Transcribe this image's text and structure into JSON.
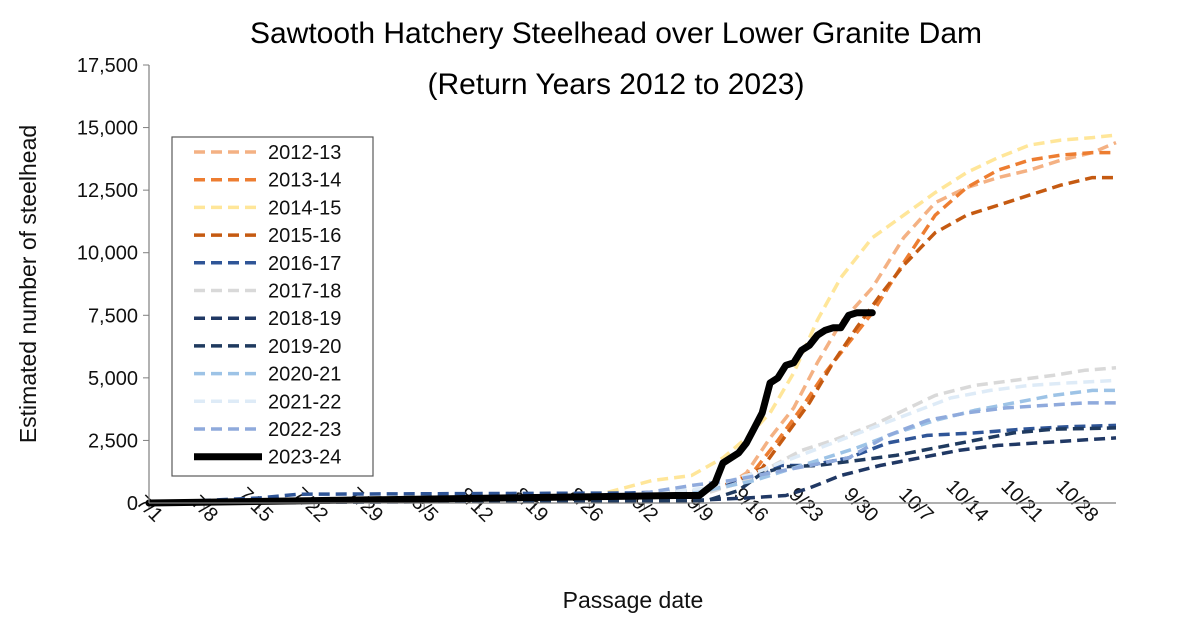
{
  "chart_data": {
    "type": "line",
    "title": "Sawtooth Hatchery Steelhead over Lower Granite Dam",
    "subtitle": "(Return Years 2012 to 2023)",
    "xlabel": "Passage date",
    "ylabel": "Estimated number of steelhead",
    "x_ticks": [
      "7/1",
      "7/8",
      "7/15",
      "7/22",
      "7/29",
      "8/5",
      "8/12",
      "8/19",
      "8/26",
      "9/2",
      "9/9",
      "9/16",
      "9/23",
      "9/30",
      "10/7",
      "10/14",
      "10/21",
      "10/28"
    ],
    "x_start_date": "7/1",
    "x_end_date": "11/1",
    "y_ticks": [
      "0",
      "2,500",
      "5,000",
      "7,500",
      "10,000",
      "12,500",
      "15,000",
      "17,500"
    ],
    "ylim": [
      0,
      17500
    ],
    "grid": false,
    "legend_position": "left",
    "series": [
      {
        "name": "2012-13",
        "color": "#f4b183",
        "dash": true,
        "x": [
          "7/1",
          "8/31",
          "9/7",
          "9/12",
          "9/15",
          "9/18",
          "9/21",
          "9/24",
          "9/27",
          "10/1",
          "10/5",
          "10/9",
          "10/13",
          "10/17",
          "10/21",
          "10/25",
          "10/29",
          "11/1"
        ],
        "values": [
          0,
          350,
          400,
          600,
          1200,
          2600,
          3800,
          5600,
          7200,
          8600,
          10600,
          12000,
          12600,
          13000,
          13300,
          13700,
          14000,
          14400
        ]
      },
      {
        "name": "2013-14",
        "color": "#ed7d31",
        "dash": true,
        "x": [
          "7/1",
          "8/31",
          "9/9",
          "9/13",
          "9/16",
          "9/19",
          "9/22",
          "9/25",
          "9/28",
          "10/1",
          "10/5",
          "10/9",
          "10/13",
          "10/17",
          "10/21",
          "10/25",
          "10/29",
          "11/1"
        ],
        "values": [
          0,
          300,
          400,
          700,
          1300,
          2500,
          3800,
          5200,
          6400,
          7600,
          9600,
          11500,
          12600,
          13300,
          13700,
          13900,
          14000,
          14000
        ]
      },
      {
        "name": "2014-15",
        "color": "#ffe699",
        "dash": true,
        "x": [
          "7/1",
          "8/28",
          "9/3",
          "9/8",
          "9/12",
          "9/15",
          "9/18",
          "9/21",
          "9/24",
          "9/27",
          "10/1",
          "10/5",
          "10/9",
          "10/13",
          "10/17",
          "10/21",
          "10/25",
          "10/29",
          "11/1"
        ],
        "values": [
          0,
          400,
          900,
          1100,
          1800,
          2600,
          3600,
          5200,
          7300,
          9000,
          10600,
          11500,
          12400,
          13200,
          13800,
          14300,
          14500,
          14600,
          14700
        ]
      },
      {
        "name": "2015-16",
        "color": "#c55a11",
        "dash": true,
        "x": [
          "7/1",
          "8/31",
          "9/9",
          "9/14",
          "9/17",
          "9/20",
          "9/23",
          "9/26",
          "9/29",
          "10/2",
          "10/5",
          "10/9",
          "10/13",
          "10/17",
          "10/21",
          "10/25",
          "10/29",
          "11/1"
        ],
        "values": [
          0,
          300,
          400,
          900,
          1400,
          2700,
          4000,
          5600,
          7000,
          8300,
          9500,
          10800,
          11500,
          11900,
          12300,
          12700,
          13000,
          13000
        ]
      },
      {
        "name": "2016-17",
        "color": "#2f5597",
        "dash": true,
        "x": [
          "7/1",
          "7/15",
          "7/20",
          "8/31",
          "9/10",
          "9/16",
          "9/19",
          "9/23",
          "9/28",
          "10/3",
          "10/8",
          "10/14",
          "10/20",
          "10/26",
          "11/1"
        ],
        "values": [
          0,
          200,
          350,
          400,
          500,
          1000,
          1500,
          1500,
          1800,
          2400,
          2700,
          2800,
          2950,
          3050,
          3100
        ]
      },
      {
        "name": "2017-18",
        "color": "#d9d9d9",
        "dash": true,
        "x": [
          "7/1",
          "8/31",
          "9/10",
          "9/15",
          "9/19",
          "9/22",
          "9/26",
          "10/1",
          "10/5",
          "10/9",
          "10/14",
          "10/19",
          "10/24",
          "10/28",
          "11/1"
        ],
        "values": [
          0,
          250,
          400,
          900,
          1600,
          2100,
          2500,
          3100,
          3700,
          4300,
          4700,
          4900,
          5100,
          5300,
          5400
        ]
      },
      {
        "name": "2018-19",
        "color": "#203864",
        "dash": true,
        "x": [
          "7/1",
          "9/8",
          "9/15",
          "9/20",
          "9/23",
          "9/27",
          "10/2",
          "10/7",
          "10/12",
          "10/17",
          "10/22",
          "10/27",
          "11/1"
        ],
        "values": [
          0,
          100,
          200,
          300,
          600,
          1100,
          1500,
          1800,
          2100,
          2300,
          2400,
          2500,
          2600
        ]
      },
      {
        "name": "2019-20",
        "color": "#1f3a5f",
        "dash": true,
        "x": [
          "7/1",
          "9/10",
          "9/14",
          "9/17",
          "9/20",
          "9/24",
          "9/29",
          "10/4",
          "10/9",
          "10/14",
          "10/19",
          "10/24",
          "11/1"
        ],
        "values": [
          0,
          100,
          500,
          1200,
          1450,
          1500,
          1700,
          1900,
          2200,
          2500,
          2800,
          2950,
          3000
        ]
      },
      {
        "name": "2020-21",
        "color": "#9dc3e6",
        "dash": true,
        "x": [
          "7/1",
          "8/31",
          "9/10",
          "9/16",
          "9/20",
          "9/24",
          "9/29",
          "10/4",
          "10/9",
          "10/14",
          "10/19",
          "10/24",
          "10/29",
          "11/1"
        ],
        "values": [
          0,
          300,
          500,
          900,
          1300,
          1700,
          2200,
          2800,
          3300,
          3700,
          4000,
          4300,
          4500,
          4500
        ]
      },
      {
        "name": "2021-22",
        "color": "#deebf7",
        "dash": true,
        "x": [
          "7/1",
          "8/31",
          "9/10",
          "9/16",
          "9/21",
          "9/26",
          "10/1",
          "10/6",
          "10/11",
          "10/16",
          "10/21",
          "10/26",
          "11/1"
        ],
        "values": [
          0,
          300,
          600,
          1200,
          1800,
          2400,
          3000,
          3600,
          4200,
          4500,
          4700,
          4800,
          4900
        ]
      },
      {
        "name": "2022-23",
        "color": "#8faadc",
        "dash": true,
        "x": [
          "7/1",
          "8/31",
          "9/8",
          "9/13",
          "9/18",
          "9/23",
          "9/28",
          "10/3",
          "10/8",
          "10/13",
          "10/18",
          "10/23",
          "10/28",
          "11/1"
        ],
        "values": [
          0,
          300,
          700,
          900,
          1200,
          1500,
          1800,
          2700,
          3300,
          3600,
          3800,
          3900,
          4000,
          4000
        ]
      },
      {
        "name": "2023-24",
        "color": "#000000",
        "dash": false,
        "x": [
          "7/1",
          "9/6",
          "9/9",
          "9/11",
          "9/12",
          "9/14",
          "9/15",
          "9/16",
          "9/17",
          "9/18",
          "9/19",
          "9/20",
          "9/21",
          "9/22",
          "9/23",
          "9/24",
          "9/25",
          "9/26",
          "9/27",
          "9/28",
          "9/29",
          "9/30",
          "10/1"
        ],
        "values": [
          0,
          300,
          300,
          800,
          1600,
          2000,
          2400,
          3000,
          3600,
          4800,
          5000,
          5500,
          5600,
          6100,
          6300,
          6700,
          6900,
          7000,
          7000,
          7500,
          7600,
          7600,
          7600
        ]
      }
    ]
  }
}
